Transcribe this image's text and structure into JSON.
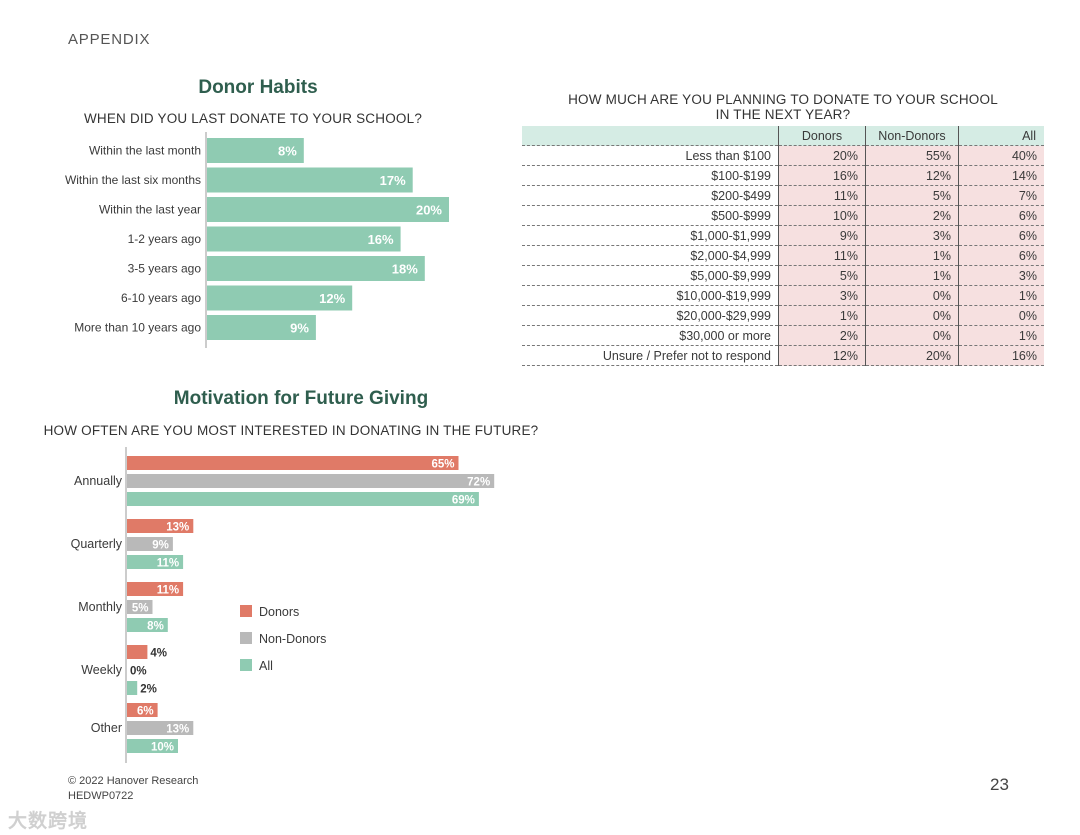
{
  "header": {
    "section_label": "APPENDIX"
  },
  "donor_habits": {
    "title": "Donor Habits",
    "subtitle": "WHEN DID YOU LAST DONATE TO YOUR SCHOOL?"
  },
  "motivation": {
    "title": "Motivation for Future Giving",
    "subtitle": "HOW OFTEN ARE YOU MOST INTERESTED IN DONATING IN THE FUTURE?"
  },
  "donation_table": {
    "title_line1": "HOW MUCH ARE YOU PLANNING TO DONATE TO YOUR SCHOOL",
    "title_line2": "IN THE NEXT YEAR?",
    "headers": [
      "",
      "Donors",
      "Non-Donors",
      "All"
    ],
    "rows": [
      [
        "Less than $100",
        "20%",
        "55%",
        "40%"
      ],
      [
        "$100-$199",
        "16%",
        "12%",
        "14%"
      ],
      [
        "$200-$499",
        "11%",
        "5%",
        "7%"
      ],
      [
        "$500-$999",
        "10%",
        "2%",
        "6%"
      ],
      [
        "$1,000-$1,999",
        "9%",
        "3%",
        "6%"
      ],
      [
        "$2,000-$4,999",
        "11%",
        "1%",
        "6%"
      ],
      [
        "$5,000-$9,999",
        "5%",
        "1%",
        "3%"
      ],
      [
        "$10,000-$19,999",
        "3%",
        "0%",
        "1%"
      ],
      [
        "$20,000-$29,999",
        "1%",
        "0%",
        "0%"
      ],
      [
        "$30,000 or more",
        "2%",
        "0%",
        "1%"
      ],
      [
        "Unsure / Prefer not to respond",
        "12%",
        "20%",
        "16%"
      ]
    ]
  },
  "chart_data": [
    {
      "type": "bar",
      "orientation": "horizontal",
      "title": "Donor Habits",
      "subtitle": "WHEN DID YOU LAST DONATE TO YOUR SCHOOL?",
      "categories": [
        "Within the last month",
        "Within the last six months",
        "Within the last year",
        "1-2 years ago",
        "3-5 years ago",
        "6-10 years ago",
        "More than 10 years ago"
      ],
      "values": [
        8,
        17,
        20,
        16,
        18,
        12,
        9
      ],
      "value_labels": [
        "8%",
        "17%",
        "20%",
        "16%",
        "18%",
        "12%",
        "9%"
      ],
      "unit": "%",
      "color": "#8fcbb2",
      "xlim": [
        0,
        20
      ]
    },
    {
      "type": "bar",
      "orientation": "horizontal",
      "title": "Motivation for Future Giving",
      "subtitle": "HOW OFTEN ARE YOU MOST INTERESTED IN DONATING IN THE FUTURE?",
      "categories": [
        "Annually",
        "Quarterly",
        "Monthly",
        "Weekly",
        "Other"
      ],
      "series": [
        {
          "name": "Donors",
          "color": "#e07a67",
          "values": [
            65,
            13,
            11,
            4,
            6
          ],
          "value_labels": [
            "65%",
            "13%",
            "11%",
            "4%",
            "6%"
          ]
        },
        {
          "name": "Non-Donors",
          "color": "#b9b9b9",
          "values": [
            72,
            9,
            5,
            0,
            13
          ],
          "value_labels": [
            "72%",
            "9%",
            "5%",
            "0%",
            "13%"
          ]
        },
        {
          "name": "All",
          "color": "#8fcbb2",
          "values": [
            69,
            11,
            8,
            2,
            10
          ],
          "value_labels": [
            "69%",
            "11%",
            "8%",
            "2%",
            "10%"
          ]
        }
      ],
      "legend": [
        "Donors",
        "Non-Donors",
        "All"
      ],
      "legend_position": "right",
      "unit": "%",
      "xlim": [
        0,
        72
      ]
    }
  ],
  "footer": {
    "copyright": "© 2022 Hanover Research",
    "code": "HEDWP0722",
    "page_number": "23",
    "watermark": "大数跨境"
  }
}
